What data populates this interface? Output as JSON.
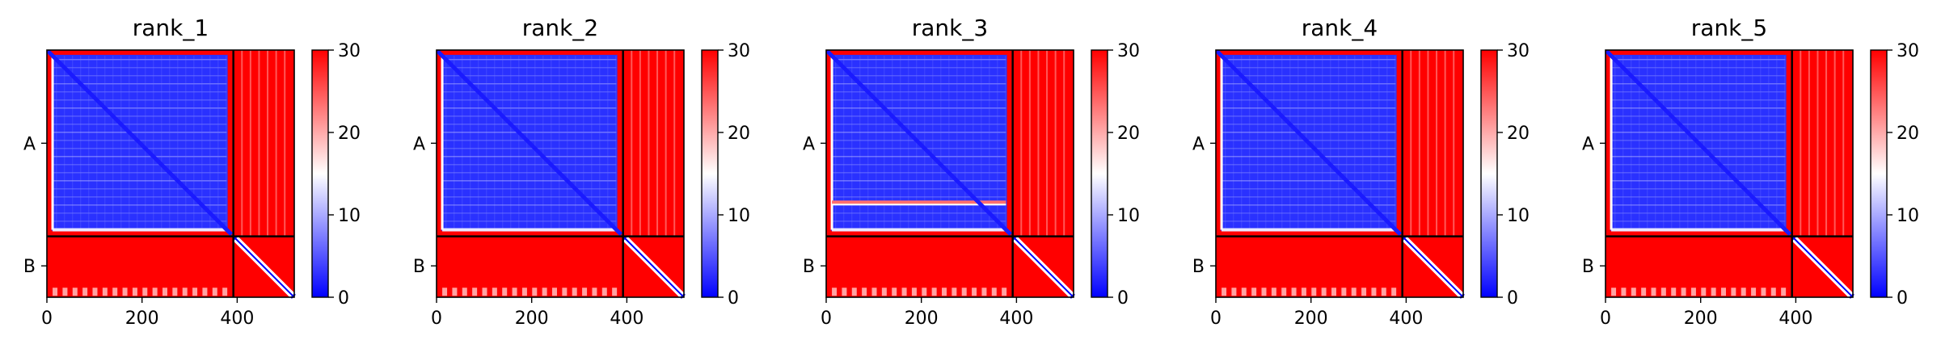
{
  "figure_title": "",
  "colors": {
    "low": "#0000ff",
    "mid": "#ffffff",
    "high": "#ff0000",
    "boundary": "#000000"
  },
  "chart_data": [
    {
      "type": "heatmap",
      "title": "rank_1",
      "xlabel": "",
      "ylabel": "",
      "xlim": [
        0,
        520
      ],
      "ylim": [
        520,
        0
      ],
      "xticks": [
        0,
        200,
        400
      ],
      "yticks": [
        {
          "label": "A",
          "value": 196
        },
        {
          "label": "B",
          "value": 454
        }
      ],
      "chain_boundary": 392,
      "colorbar": {
        "range": [
          0,
          30
        ],
        "ticks": [
          0,
          10,
          20,
          30
        ],
        "colormap": "bwr"
      },
      "bands": []
    },
    {
      "type": "heatmap",
      "title": "rank_2",
      "xlabel": "",
      "ylabel": "",
      "xlim": [
        0,
        520
      ],
      "ylim": [
        520,
        0
      ],
      "xticks": [
        0,
        200,
        400
      ],
      "yticks": [
        {
          "label": "A",
          "value": 196
        },
        {
          "label": "B",
          "value": 454
        }
      ],
      "chain_boundary": 392,
      "colorbar": {
        "range": [
          0,
          30
        ],
        "ticks": [
          0,
          10,
          20,
          30
        ],
        "colormap": "bwr"
      },
      "bands": []
    },
    {
      "type": "heatmap",
      "title": "rank_3",
      "xlabel": "",
      "ylabel": "",
      "xlim": [
        0,
        520
      ],
      "ylim": [
        520,
        0
      ],
      "xticks": [
        0,
        200,
        400
      ],
      "yticks": [
        {
          "label": "A",
          "value": 196
        },
        {
          "label": "B",
          "value": 454
        }
      ],
      "chain_boundary": 392,
      "colorbar": {
        "range": [
          0,
          30
        ],
        "ticks": [
          0,
          10,
          20,
          30
        ],
        "colormap": "bwr"
      },
      "bands": [
        320
      ]
    },
    {
      "type": "heatmap",
      "title": "rank_4",
      "xlabel": "",
      "ylabel": "",
      "xlim": [
        0,
        520
      ],
      "ylim": [
        520,
        0
      ],
      "xticks": [
        0,
        200,
        400
      ],
      "yticks": [
        {
          "label": "A",
          "value": 196
        },
        {
          "label": "B",
          "value": 454
        }
      ],
      "chain_boundary": 392,
      "colorbar": {
        "range": [
          0,
          30
        ],
        "ticks": [
          0,
          10,
          20,
          30
        ],
        "colormap": "bwr"
      },
      "bands": []
    },
    {
      "type": "heatmap",
      "title": "rank_5",
      "xlabel": "",
      "ylabel": "",
      "xlim": [
        0,
        520
      ],
      "ylim": [
        520,
        0
      ],
      "xticks": [
        0,
        200,
        400
      ],
      "yticks": [
        {
          "label": "A",
          "value": 196
        },
        {
          "label": "B",
          "value": 454
        }
      ],
      "chain_boundary": 392,
      "colorbar": {
        "range": [
          0,
          30
        ],
        "ticks": [
          0,
          10,
          20,
          30
        ],
        "colormap": "bwr"
      },
      "bands": []
    }
  ]
}
